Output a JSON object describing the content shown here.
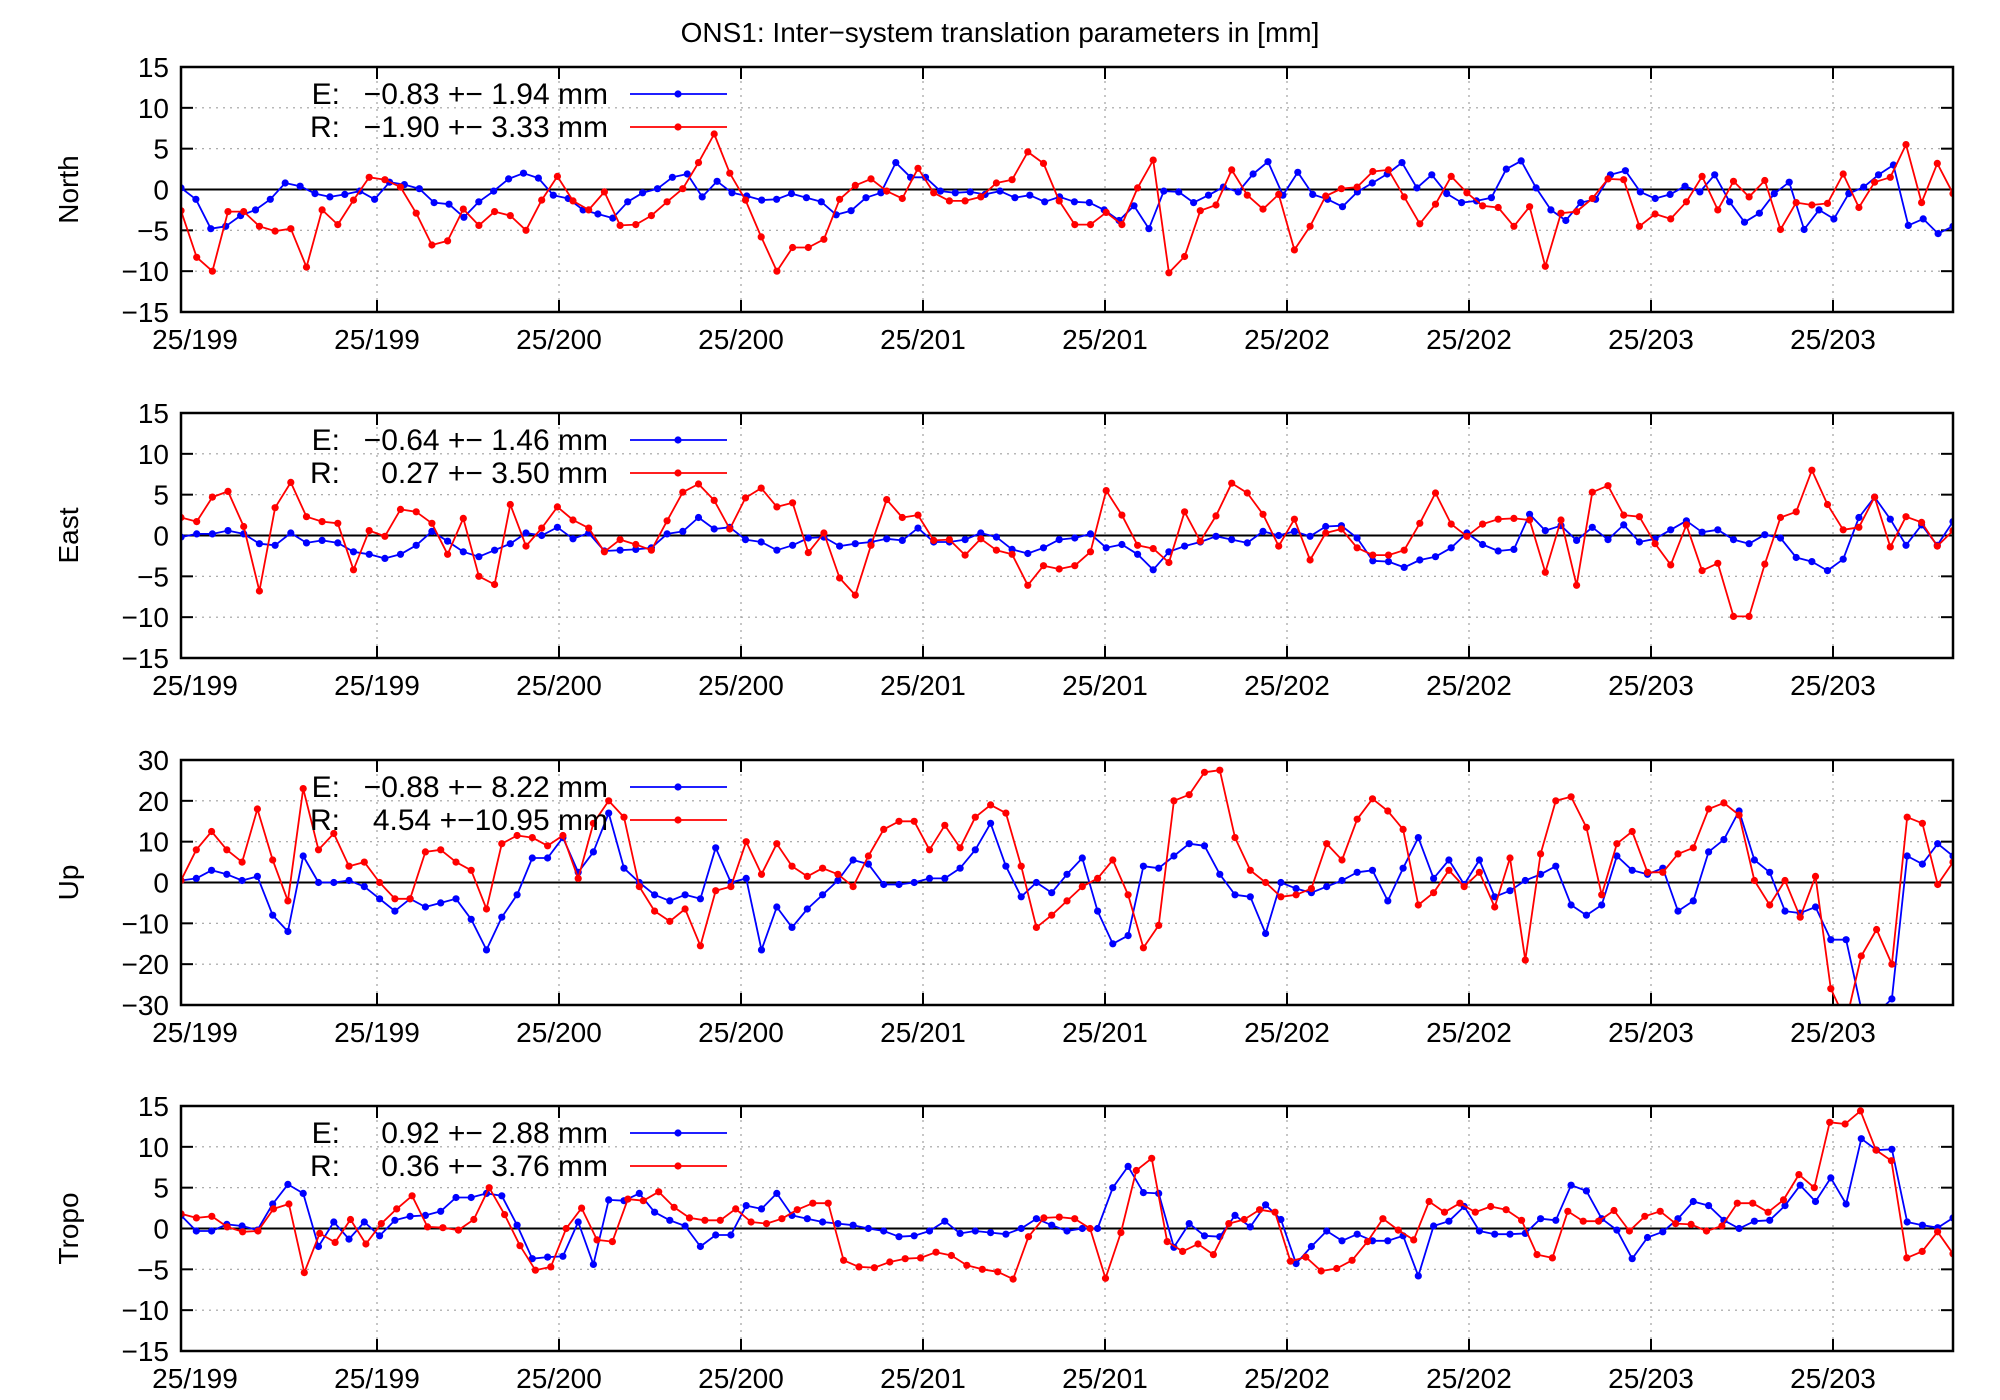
{
  "title": "ONS1: Inter−system translation parameters in [mm]",
  "colors": {
    "E": "#0000ff",
    "R": "#ff0000",
    "zero_line": "#000000",
    "grid": "#a0a0a0"
  },
  "chart_data": [
    {
      "type": "line",
      "ylabel": "North",
      "ylim": [
        -15,
        15
      ],
      "yticks": [
        -15,
        -10,
        -5,
        0,
        5,
        10,
        15
      ],
      "xticks": [
        "25/199",
        "25/199",
        "25/200",
        "25/200",
        "25/201",
        "25/201",
        "25/202",
        "25/202",
        "25/203",
        "25/203"
      ],
      "grid": true,
      "legend_position": "top-left",
      "series": [
        {
          "name": "E",
          "label_text": "E:",
          "stats": "−0.83 +− 1.94 mm",
          "color": "#0000ff",
          "values": [
            0.2,
            -1.2,
            -4.8,
            -4.5,
            -3.2,
            -2.5,
            -1.2,
            0.8,
            0.4,
            -0.5,
            -0.9,
            -0.6,
            -0.2,
            -1.2,
            0.9,
            0.6,
            0.1,
            -1.6,
            -1.8,
            -3.4,
            -1.5,
            -0.2,
            1.3,
            2.0,
            1.4,
            -0.7,
            -1.1,
            -2.5,
            -3.0,
            -3.5,
            -1.5,
            -0.4,
            0.1,
            1.5,
            1.9,
            -0.9,
            1.0,
            -0.4,
            -0.8,
            -1.3,
            -1.2,
            -0.5,
            -1.0,
            -1.5,
            -3.1,
            -2.6,
            -1.0,
            -0.4,
            3.3,
            1.5,
            1.5,
            -0.2,
            -0.4,
            -0.3,
            -0.6,
            -0.2,
            -1.0,
            -0.7,
            -1.5,
            -0.9,
            -1.5,
            -1.6,
            -2.5,
            -3.8,
            -2.0,
            -4.8,
            -0.2,
            -0.3,
            -1.6,
            -0.7,
            0.3,
            -0.3,
            1.9,
            3.4,
            -0.7,
            2.1,
            -0.6,
            -1.2,
            -2.1,
            -0.3,
            0.8,
            1.9,
            3.3,
            0.2,
            1.8,
            -0.5,
            -1.6,
            -1.4,
            -1.0,
            2.5,
            3.5,
            0.2,
            -2.5,
            -3.8,
            -1.6,
            -1.2,
            1.8,
            2.3,
            -0.3,
            -1.1,
            -0.6,
            0.4,
            -0.3,
            1.8,
            -1.5,
            -4.0,
            -2.9,
            -0.5,
            0.9,
            -4.9,
            -2.5,
            -3.6,
            -0.5,
            0.3,
            1.8,
            3.0,
            -4.4,
            -3.6,
            -5.4,
            -4.5
          ]
        },
        {
          "name": "R",
          "label_text": "R:",
          "stats": "−1.90 +− 3.33 mm",
          "color": "#ff0000",
          "values": [
            -2.6,
            -8.3,
            -10.0,
            -2.7,
            -2.7,
            -4.5,
            -5.1,
            -4.8,
            -9.5,
            -2.5,
            -4.3,
            -1.3,
            1.5,
            1.2,
            0.3,
            -2.9,
            -6.8,
            -6.3,
            -2.4,
            -4.4,
            -2.7,
            -3.2,
            -5.0,
            -1.3,
            1.6,
            -1.4,
            -2.5,
            -0.3,
            -4.4,
            -4.3,
            -3.2,
            -1.5,
            0.1,
            3.3,
            6.8,
            2.0,
            -1.3,
            -5.8,
            -10.0,
            -7.1,
            -7.1,
            -6.1,
            -1.2,
            0.5,
            1.3,
            -0.2,
            -1.1,
            2.6,
            -0.4,
            -1.4,
            -1.4,
            -0.9,
            0.8,
            1.2,
            4.6,
            3.2,
            -1.4,
            -4.3,
            -4.3,
            -2.8,
            -4.3,
            0.2,
            3.6,
            -10.2,
            -8.2,
            -2.6,
            -1.9,
            2.4,
            -0.7,
            -2.4,
            -0.6,
            -7.4,
            -4.5,
            -0.8,
            0.1,
            0.3,
            2.2,
            2.4,
            -0.9,
            -4.2,
            -1.8,
            1.6,
            -0.4,
            -2.0,
            -2.2,
            -4.5,
            -2.1,
            -9.4,
            -2.9,
            -2.7,
            -1.1,
            1.3,
            1.2,
            -4.5,
            -3.0,
            -3.6,
            -1.5,
            1.6,
            -2.5,
            1.0,
            -0.9,
            1.1,
            -4.9,
            -1.6,
            -1.9,
            -1.7,
            1.9,
            -2.2,
            0.9,
            1.5,
            5.5,
            -1.6,
            3.2,
            -0.5
          ]
        }
      ]
    },
    {
      "type": "line",
      "ylabel": "East",
      "ylim": [
        -15,
        15
      ],
      "yticks": [
        -15,
        -10,
        -5,
        0,
        5,
        10,
        15
      ],
      "xticks": [
        "25/199",
        "25/199",
        "25/200",
        "25/200",
        "25/201",
        "25/201",
        "25/202",
        "25/202",
        "25/203",
        "25/203"
      ],
      "grid": true,
      "legend_position": "top-left",
      "series": [
        {
          "name": "E",
          "label_text": "E:",
          "stats": "−0.64 +− 1.46 mm",
          "color": "#0000ff",
          "values": [
            -0.2,
            0.2,
            0.2,
            0.6,
            0.2,
            -1.0,
            -1.2,
            0.3,
            -0.9,
            -0.6,
            -0.9,
            -2.0,
            -2.3,
            -2.8,
            -2.3,
            -1.2,
            0.5,
            -0.7,
            -2.0,
            -2.6,
            -1.8,
            -1.0,
            0.3,
            0.0,
            1.0,
            -0.4,
            0.3,
            -1.9,
            -1.8,
            -1.7,
            -1.5,
            0.2,
            0.5,
            2.2,
            0.8,
            1.0,
            -0.5,
            -0.8,
            -1.8,
            -1.2,
            -0.3,
            -0.2,
            -1.3,
            -1.0,
            -0.8,
            -0.4,
            -0.6,
            0.9,
            -0.8,
            -0.8,
            -0.5,
            0.3,
            -0.2,
            -1.7,
            -2.2,
            -1.5,
            -0.5,
            -0.3,
            0.2,
            -1.5,
            -1.1,
            -2.3,
            -4.2,
            -2.0,
            -1.3,
            -0.8,
            -0.1,
            -0.5,
            -0.9,
            0.5,
            0.0,
            0.5,
            -0.1,
            1.1,
            1.2,
            -0.3,
            -3.1,
            -3.2,
            -3.9,
            -3.0,
            -2.6,
            -1.5,
            0.3,
            -1.1,
            -1.9,
            -1.7,
            2.6,
            0.6,
            1.2,
            -0.6,
            1.0,
            -0.5,
            1.3,
            -0.8,
            -0.4,
            0.7,
            1.8,
            0.4,
            0.7,
            -0.5,
            -1.0,
            0.1,
            -0.3,
            -2.7,
            -3.2,
            -4.3,
            -2.9,
            2.2,
            4.7,
            2.0,
            -1.2,
            1.3,
            -1.2,
            1.7
          ]
        },
        {
          "name": "R",
          "label_text": "R:",
          "stats": "0.27 +− 3.50 mm",
          "color": "#ff0000",
          "values": [
            2.2,
            1.7,
            4.7,
            5.4,
            1.1,
            -6.8,
            3.4,
            6.5,
            2.3,
            1.7,
            1.5,
            -4.2,
            0.6,
            -0.1,
            3.2,
            2.9,
            1.5,
            -2.3,
            2.1,
            -5.0,
            -6.0,
            3.8,
            -1.3,
            0.9,
            3.5,
            1.9,
            0.9,
            -2.0,
            -0.5,
            -1.1,
            -1.8,
            1.8,
            5.3,
            6.3,
            4.3,
            0.8,
            4.6,
            5.8,
            3.5,
            4.0,
            -2.1,
            0.3,
            -5.2,
            -7.3,
            -1.2,
            4.4,
            2.2,
            2.5,
            -0.6,
            -0.5,
            -2.4,
            -0.4,
            -1.8,
            -2.3,
            -6.1,
            -3.7,
            -4.1,
            -3.7,
            -2.0,
            5.5,
            2.5,
            -1.2,
            -1.6,
            -3.3,
            2.9,
            -0.7,
            2.4,
            6.4,
            5.2,
            2.6,
            -1.3,
            2.0,
            -3.0,
            0.3,
            0.8,
            -1.5,
            -2.4,
            -2.4,
            -1.8,
            1.5,
            5.2,
            1.4,
            -0.1,
            1.4,
            2.0,
            2.1,
            1.9,
            -4.5,
            1.9,
            -6.1,
            5.3,
            6.1,
            2.5,
            2.3,
            -1.0,
            -3.6,
            1.3,
            -4.3,
            -3.4,
            -9.9,
            -9.9,
            -3.5,
            2.2,
            2.9,
            8.0,
            3.8,
            0.7,
            1.0,
            4.7,
            -1.4,
            2.3,
            1.6,
            -1.3,
            0.6
          ]
        }
      ]
    },
    {
      "type": "line",
      "ylabel": "Up",
      "ylim": [
        -30,
        30
      ],
      "yticks": [
        -30,
        -20,
        -10,
        0,
        10,
        20,
        30
      ],
      "xticks": [
        "25/199",
        "25/199",
        "25/200",
        "25/200",
        "25/201",
        "25/201",
        "25/202",
        "25/202",
        "25/203",
        "25/203"
      ],
      "grid": true,
      "legend_position": "top-left",
      "series": [
        {
          "name": "E",
          "label_text": "E:",
          "stats": "−0.88 +− 8.22 mm",
          "color": "#0000ff",
          "values": [
            0.5,
            1.0,
            3.0,
            2.0,
            0.5,
            1.5,
            -8.0,
            -12.0,
            6.5,
            0.0,
            0.0,
            0.5,
            -1.0,
            -4.0,
            -7.0,
            -4.0,
            -6.0,
            -5.0,
            -4.0,
            -9.0,
            -16.5,
            -8.5,
            -3.0,
            6.0,
            6.0,
            11.0,
            2.5,
            7.5,
            17.0,
            3.5,
            0.0,
            -3.0,
            -4.5,
            -3.0,
            -4.0,
            8.5,
            0.0,
            1.0,
            -16.5,
            -6.0,
            -11.0,
            -6.5,
            -3.0,
            0.5,
            5.5,
            4.5,
            -0.5,
            -0.5,
            0.0,
            1.0,
            1.0,
            3.5,
            8.0,
            14.5,
            4.0,
            -3.5,
            0.0,
            -2.5,
            2.0,
            6.0,
            -7.0,
            -15.0,
            -13.0,
            4.0,
            3.5,
            6.5,
            9.5,
            9.0,
            2.0,
            -3.0,
            -3.5,
            -12.5,
            0.0,
            -1.5,
            -2.5,
            -1.0,
            0.5,
            2.5,
            3.0,
            -4.5,
            3.5,
            11.0,
            1.0,
            5.5,
            -0.5,
            5.5,
            -3.5,
            -2.0,
            0.5,
            2.0,
            4.0,
            -5.5,
            -8.0,
            -5.5,
            6.5,
            3.0,
            2.0,
            3.5,
            -7.0,
            -4.5,
            7.5,
            10.5,
            17.5,
            5.5,
            2.5,
            -7.0,
            -7.5,
            -6.0,
            -14.0,
            -14.0,
            -31.0,
            -32.0,
            -28.5,
            6.5,
            4.5,
            9.5,
            6.5
          ]
        },
        {
          "name": "R",
          "label_text": "R:",
          "stats": "4.54 +−10.95 mm",
          "color": "#ff0000",
          "values": [
            0.5,
            8.0,
            12.5,
            8.0,
            5.0,
            18.0,
            5.5,
            -4.5,
            23.0,
            8.0,
            12.0,
            4.0,
            5.0,
            0.0,
            -4.0,
            -4.0,
            7.5,
            8.0,
            5.0,
            3.0,
            -6.5,
            9.5,
            11.5,
            11.0,
            9.0,
            11.5,
            1.0,
            14.5,
            20.0,
            16.0,
            -1.0,
            -7.0,
            -9.5,
            -6.5,
            -15.5,
            -2.0,
            -1.0,
            10.0,
            2.0,
            9.5,
            4.0,
            1.5,
            3.5,
            2.0,
            -1.0,
            6.5,
            13.0,
            15.0,
            15.0,
            8.0,
            14.0,
            8.5,
            16.0,
            19.0,
            17.0,
            4.0,
            -11.0,
            -8.0,
            -4.5,
            -1.0,
            1.0,
            5.5,
            -3.0,
            -16.0,
            -10.5,
            20.0,
            21.5,
            27.0,
            27.5,
            11.0,
            3.0,
            0.0,
            -3.5,
            -3.0,
            -1.5,
            9.5,
            5.5,
            15.5,
            20.5,
            17.5,
            13.0,
            -5.5,
            -2.5,
            3.0,
            -1.0,
            2.5,
            -6.0,
            6.0,
            -19.0,
            7.0,
            20.0,
            21.0,
            13.5,
            -3.0,
            9.5,
            12.5,
            2.5,
            2.5,
            7.0,
            8.5,
            18.0,
            19.5,
            16.5,
            0.5,
            -5.5,
            0.5,
            -8.5,
            1.5,
            -26.0,
            -34.0,
            -18.0,
            -11.5,
            -20.0,
            16.0,
            14.5,
            -0.5,
            5.0
          ]
        }
      ]
    },
    {
      "type": "line",
      "ylabel": "Tropo",
      "ylim": [
        -15,
        15
      ],
      "yticks": [
        -15,
        -10,
        -5,
        0,
        5,
        10,
        15
      ],
      "xticks": [
        "25/199",
        "25/199",
        "25/200",
        "25/200",
        "25/201",
        "25/201",
        "25/202",
        "25/202",
        "25/203",
        "25/203"
      ],
      "grid": true,
      "legend_position": "top-left",
      "series": [
        {
          "name": "E",
          "label_text": "E:",
          "stats": "0.92 +− 2.88 mm",
          "color": "#0000ff",
          "values": [
            1.6,
            -0.3,
            -0.3,
            0.5,
            0.3,
            -0.2,
            3.0,
            5.4,
            4.3,
            -2.2,
            0.8,
            -1.3,
            0.8,
            -0.9,
            1.0,
            1.5,
            1.6,
            2.1,
            3.8,
            3.8,
            4.3,
            4.0,
            0.4,
            -3.7,
            -3.5,
            -3.4,
            0.8,
            -4.4,
            3.5,
            3.4,
            4.3,
            2.0,
            1.0,
            0.3,
            -2.2,
            -0.8,
            -0.8,
            2.8,
            2.4,
            4.3,
            1.6,
            1.2,
            0.8,
            0.6,
            0.4,
            0.0,
            -0.3,
            -1.0,
            -0.9,
            -0.3,
            0.9,
            -0.6,
            -0.3,
            -0.5,
            -0.7,
            0.0,
            1.2,
            0.4,
            -0.3,
            0.0,
            0.0,
            5.0,
            7.6,
            4.4,
            4.3,
            -2.3,
            0.6,
            -0.9,
            -1.0,
            1.6,
            0.2,
            2.9,
            1.1,
            -4.3,
            -2.2,
            -0.3,
            -1.5,
            -0.7,
            -1.5,
            -1.5,
            -0.9,
            -5.8,
            0.3,
            0.9,
            2.7,
            -0.3,
            -0.7,
            -0.7,
            -0.6,
            1.2,
            1.0,
            5.3,
            4.6,
            1.2,
            -0.2,
            -3.7,
            -1.1,
            -0.4,
            1.2,
            3.3,
            2.8,
            1.0,
            0.0,
            0.9,
            1.0,
            2.8,
            5.3,
            3.3,
            6.2,
            3.0,
            11.0,
            9.6,
            9.7,
            0.8,
            0.4,
            0.1,
            1.3
          ]
        },
        {
          "name": "R",
          "label_text": "R:",
          "stats": "0.36 +− 3.76 mm",
          "color": "#ff0000",
          "values": [
            1.8,
            1.3,
            1.5,
            0.2,
            -0.4,
            -0.3,
            2.4,
            3.0,
            -5.4,
            -0.6,
            -1.7,
            1.1,
            -1.9,
            0.6,
            2.4,
            4.0,
            0.2,
            0.1,
            -0.2,
            1.1,
            5.0,
            1.7,
            -2.1,
            -5.1,
            -4.7,
            0.0,
            2.5,
            -1.4,
            -1.6,
            3.6,
            3.4,
            4.5,
            2.6,
            1.3,
            1.0,
            1.0,
            2.4,
            0.8,
            0.6,
            1.2,
            2.3,
            3.1,
            3.1,
            -3.9,
            -4.7,
            -4.8,
            -4.1,
            -3.7,
            -3.6,
            -2.9,
            -3.3,
            -4.5,
            -5.0,
            -5.3,
            -6.2,
            -1.0,
            1.3,
            1.4,
            1.2,
            0.0,
            -6.1,
            -0.5,
            7.1,
            8.6,
            -1.6,
            -2.8,
            -1.9,
            -3.2,
            0.6,
            1.1,
            2.3,
            2.0,
            -4.0,
            -3.5,
            -5.2,
            -4.9,
            -3.9,
            -1.6,
            1.2,
            -0.2,
            -1.4,
            3.3,
            2.0,
            3.1,
            2.0,
            2.7,
            2.3,
            1.0,
            -3.2,
            -3.6,
            2.1,
            0.9,
            0.9,
            2.2,
            -0.3,
            1.5,
            2.1,
            0.6,
            0.5,
            -0.3,
            0.3,
            3.1,
            3.1,
            2.0,
            3.5,
            6.6,
            5.0,
            13.0,
            12.8,
            14.4,
            9.6,
            8.3,
            -3.6,
            -2.8,
            -0.4,
            -3.1
          ]
        }
      ]
    }
  ]
}
